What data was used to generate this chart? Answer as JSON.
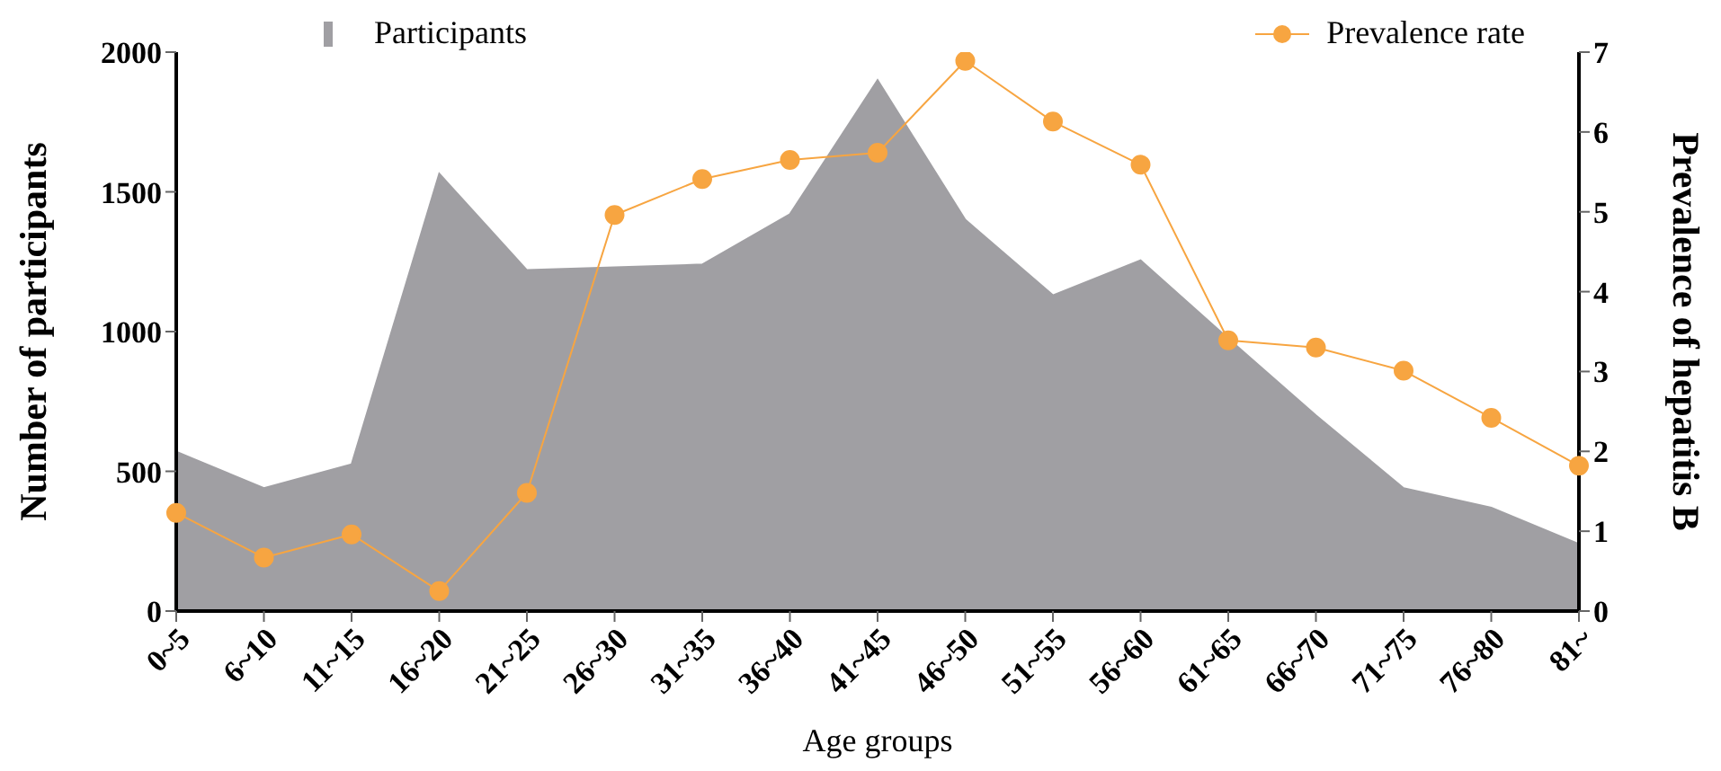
{
  "chart_data": {
    "type": "area",
    "xlabel": "Age groups",
    "ylabel": "Number of participants",
    "y2label": "Prevalence of hepatitis B",
    "categories": [
      "0~5",
      "6~10",
      "11~15",
      "16~20",
      "21~25",
      "26~30",
      "31~35",
      "36~40",
      "41~45",
      "46~50",
      "51~55",
      "56~60",
      "61~65",
      "66~70",
      "71~75",
      "76~80",
      "81~"
    ],
    "series": [
      {
        "name": "Participants",
        "color": "#a09fa3",
        "values": [
          570,
          440,
          525,
          1565,
          1220,
          1230,
          1240,
          1420,
          1900,
          1400,
          1130,
          1255,
          975,
          700,
          440,
          370,
          240
        ]
      },
      {
        "name": "Prevalence rate",
        "type": "line",
        "axis": "y2",
        "color": "#f7a541",
        "marker": "circle",
        "values": [
          1.23,
          0.67,
          0.96,
          0.25,
          1.48,
          4.96,
          5.41,
          5.65,
          5.74,
          6.89,
          6.13,
          5.59,
          3.39,
          3.3,
          3.01,
          2.42,
          1.82
        ]
      }
    ],
    "ylim": [
      0,
      2000
    ],
    "yticks": [
      0,
      500,
      1000,
      1500,
      2000
    ],
    "y2lim": [
      0,
      7
    ],
    "y2ticks": [
      0,
      1,
      2,
      3,
      4,
      5,
      6,
      7
    ],
    "grid": false,
    "legend": "top"
  }
}
